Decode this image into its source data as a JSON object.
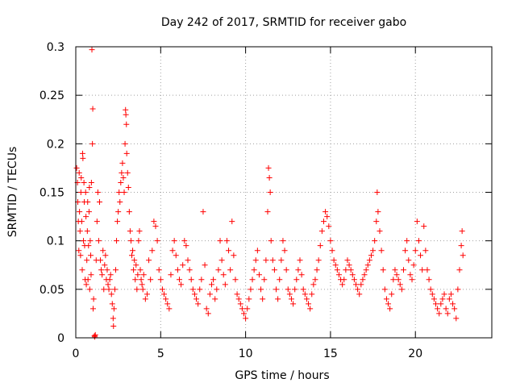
{
  "chart_data": {
    "type": "scatter",
    "title": "Day 242 of 2017, SRMTID for receiver gabo",
    "xlabel": "GPS time / hours",
    "ylabel": "SRMTID / TECUs",
    "xlim": [
      0,
      24.5
    ],
    "ylim": [
      0,
      0.3
    ],
    "xticks": [
      0,
      5,
      10,
      15,
      20
    ],
    "xtick_labels": [
      "0",
      "5",
      "10",
      "15",
      "20"
    ],
    "yticks": [
      0,
      0.05,
      0.1,
      0.15,
      0.2,
      0.25,
      0.3
    ],
    "ytick_labels": [
      "0",
      "0.05",
      "0.1",
      "0.15",
      "0.2",
      "0.25",
      "0.3"
    ],
    "grid": true,
    "marker": "+",
    "color": "#ff0000",
    "series": [
      {
        "name": "SRMTID",
        "points": [
          [
            0.05,
            0.175
          ],
          [
            0.1,
            0.16
          ],
          [
            0.12,
            0.14
          ],
          [
            0.15,
            0.12
          ],
          [
            0.18,
            0.09
          ],
          [
            0.2,
            0.17
          ],
          [
            0.22,
            0.13
          ],
          [
            0.25,
            0.11
          ],
          [
            0.28,
            0.085
          ],
          [
            0.3,
            0.15
          ],
          [
            0.32,
            0.165
          ],
          [
            0.35,
            0.12
          ],
          [
            0.38,
            0.07
          ],
          [
            0.4,
            0.19
          ],
          [
            0.42,
            0.185
          ],
          [
            0.45,
            0.1
          ],
          [
            0.48,
            0.16
          ],
          [
            0.5,
            0.14
          ],
          [
            0.52,
            0.095
          ],
          [
            0.55,
            0.06
          ],
          [
            0.58,
            0.15
          ],
          [
            0.6,
            0.125
          ],
          [
            0.62,
            0.055
          ],
          [
            0.65,
            0.08
          ],
          [
            0.68,
            0.11
          ],
          [
            0.7,
            0.14
          ],
          [
            0.72,
            0.06
          ],
          [
            0.75,
            0.095
          ],
          [
            0.78,
            0.13
          ],
          [
            0.8,
            0.155
          ],
          [
            0.82,
            0.05
          ],
          [
            0.85,
            0.1
          ],
          [
            0.88,
            0.085
          ],
          [
            0.9,
            0.065
          ],
          [
            0.92,
            0.16
          ],
          [
            0.95,
            0.297
          ],
          [
            0.98,
            0.2
          ],
          [
            1.0,
            0.236
          ],
          [
            1.02,
            0.03
          ],
          [
            1.05,
            0.04
          ],
          [
            1.1,
            0.002
          ],
          [
            1.12,
            0.001
          ],
          [
            1.15,
            0.003
          ],
          [
            1.2,
            0.08
          ],
          [
            1.25,
            0.12
          ],
          [
            1.3,
            0.15
          ],
          [
            1.35,
            0.1
          ],
          [
            1.4,
            0.14
          ],
          [
            1.45,
            0.08
          ],
          [
            1.5,
            0.07
          ],
          [
            1.55,
            0.065
          ],
          [
            1.6,
            0.09
          ],
          [
            1.65,
            0.05
          ],
          [
            1.7,
            0.075
          ],
          [
            1.75,
            0.085
          ],
          [
            1.8,
            0.06
          ],
          [
            1.85,
            0.07
          ],
          [
            1.9,
            0.055
          ],
          [
            1.95,
            0.05
          ],
          [
            2.0,
            0.06
          ],
          [
            2.05,
            0.065
          ],
          [
            2.1,
            0.045
          ],
          [
            2.15,
            0.035
          ],
          [
            2.2,
            0.02
          ],
          [
            2.22,
            0.012
          ],
          [
            2.25,
            0.03
          ],
          [
            2.3,
            0.05
          ],
          [
            2.35,
            0.07
          ],
          [
            2.4,
            0.1
          ],
          [
            2.45,
            0.12
          ],
          [
            2.5,
            0.13
          ],
          [
            2.55,
            0.15
          ],
          [
            2.6,
            0.14
          ],
          [
            2.65,
            0.16
          ],
          [
            2.7,
            0.17
          ],
          [
            2.75,
            0.18
          ],
          [
            2.8,
            0.165
          ],
          [
            2.85,
            0.15
          ],
          [
            2.9,
            0.2
          ],
          [
            2.93,
            0.235
          ],
          [
            2.95,
            0.23
          ],
          [
            2.98,
            0.22
          ],
          [
            3.0,
            0.19
          ],
          [
            3.05,
            0.17
          ],
          [
            3.1,
            0.155
          ],
          [
            3.15,
            0.13
          ],
          [
            3.2,
            0.11
          ],
          [
            3.25,
            0.1
          ],
          [
            3.3,
            0.085
          ],
          [
            3.35,
            0.09
          ],
          [
            3.4,
            0.07
          ],
          [
            3.45,
            0.08
          ],
          [
            3.5,
            0.06
          ],
          [
            3.55,
            0.075
          ],
          [
            3.6,
            0.05
          ],
          [
            3.65,
            0.065
          ],
          [
            3.7,
            0.1
          ],
          [
            3.75,
            0.11
          ],
          [
            3.8,
            0.07
          ],
          [
            3.85,
            0.06
          ],
          [
            3.9,
            0.055
          ],
          [
            3.95,
            0.05
          ],
          [
            4.0,
            0.065
          ],
          [
            4.1,
            0.04
          ],
          [
            4.2,
            0.045
          ],
          [
            4.3,
            0.08
          ],
          [
            4.4,
            0.06
          ],
          [
            4.5,
            0.09
          ],
          [
            4.6,
            0.12
          ],
          [
            4.7,
            0.115
          ],
          [
            4.8,
            0.1
          ],
          [
            4.9,
            0.07
          ],
          [
            5.0,
            0.06
          ],
          [
            5.1,
            0.05
          ],
          [
            5.2,
            0.045
          ],
          [
            5.3,
            0.04
          ],
          [
            5.4,
            0.035
          ],
          [
            5.5,
            0.03
          ],
          [
            5.6,
            0.065
          ],
          [
            5.7,
            0.09
          ],
          [
            5.8,
            0.1
          ],
          [
            5.9,
            0.085
          ],
          [
            6.0,
            0.07
          ],
          [
            6.1,
            0.06
          ],
          [
            6.2,
            0.055
          ],
          [
            6.3,
            0.075
          ],
          [
            6.4,
            0.1
          ],
          [
            6.5,
            0.095
          ],
          [
            6.6,
            0.08
          ],
          [
            6.7,
            0.07
          ],
          [
            6.8,
            0.06
          ],
          [
            6.9,
            0.05
          ],
          [
            7.0,
            0.045
          ],
          [
            7.1,
            0.04
          ],
          [
            7.2,
            0.035
          ],
          [
            7.3,
            0.05
          ],
          [
            7.4,
            0.06
          ],
          [
            7.5,
            0.13
          ],
          [
            7.6,
            0.075
          ],
          [
            7.7,
            0.03
          ],
          [
            7.8,
            0.025
          ],
          [
            7.9,
            0.045
          ],
          [
            8.0,
            0.055
          ],
          [
            8.1,
            0.06
          ],
          [
            8.2,
            0.04
          ],
          [
            8.3,
            0.05
          ],
          [
            8.4,
            0.07
          ],
          [
            8.5,
            0.1
          ],
          [
            8.6,
            0.08
          ],
          [
            8.7,
            0.065
          ],
          [
            8.8,
            0.055
          ],
          [
            8.9,
            0.1
          ],
          [
            9.0,
            0.09
          ],
          [
            9.1,
            0.07
          ],
          [
            9.2,
            0.12
          ],
          [
            9.3,
            0.085
          ],
          [
            9.4,
            0.06
          ],
          [
            9.5,
            0.045
          ],
          [
            9.6,
            0.04
          ],
          [
            9.7,
            0.035
          ],
          [
            9.8,
            0.03
          ],
          [
            9.9,
            0.025
          ],
          [
            10.0,
            0.02
          ],
          [
            10.1,
            0.03
          ],
          [
            10.2,
            0.04
          ],
          [
            10.3,
            0.05
          ],
          [
            10.4,
            0.06
          ],
          [
            10.5,
            0.07
          ],
          [
            10.6,
            0.08
          ],
          [
            10.7,
            0.09
          ],
          [
            10.8,
            0.065
          ],
          [
            10.9,
            0.05
          ],
          [
            11.0,
            0.04
          ],
          [
            11.1,
            0.06
          ],
          [
            11.2,
            0.08
          ],
          [
            11.3,
            0.13
          ],
          [
            11.35,
            0.175
          ],
          [
            11.4,
            0.165
          ],
          [
            11.45,
            0.15
          ],
          [
            11.5,
            0.1
          ],
          [
            11.6,
            0.08
          ],
          [
            11.7,
            0.07
          ],
          [
            11.8,
            0.05
          ],
          [
            11.9,
            0.04
          ],
          [
            12.0,
            0.06
          ],
          [
            12.1,
            0.08
          ],
          [
            12.2,
            0.1
          ],
          [
            12.3,
            0.09
          ],
          [
            12.4,
            0.07
          ],
          [
            12.5,
            0.05
          ],
          [
            12.6,
            0.045
          ],
          [
            12.7,
            0.04
          ],
          [
            12.8,
            0.035
          ],
          [
            12.9,
            0.05
          ],
          [
            13.0,
            0.06
          ],
          [
            13.1,
            0.07
          ],
          [
            13.2,
            0.08
          ],
          [
            13.3,
            0.065
          ],
          [
            13.4,
            0.05
          ],
          [
            13.5,
            0.045
          ],
          [
            13.6,
            0.04
          ],
          [
            13.7,
            0.035
          ],
          [
            13.8,
            0.03
          ],
          [
            13.9,
            0.045
          ],
          [
            14.0,
            0.055
          ],
          [
            14.1,
            0.06
          ],
          [
            14.2,
            0.07
          ],
          [
            14.3,
            0.08
          ],
          [
            14.4,
            0.095
          ],
          [
            14.5,
            0.11
          ],
          [
            14.6,
            0.12
          ],
          [
            14.7,
            0.13
          ],
          [
            14.8,
            0.125
          ],
          [
            14.9,
            0.115
          ],
          [
            15.0,
            0.1
          ],
          [
            15.1,
            0.09
          ],
          [
            15.2,
            0.08
          ],
          [
            15.3,
            0.075
          ],
          [
            15.4,
            0.07
          ],
          [
            15.5,
            0.065
          ],
          [
            15.6,
            0.06
          ],
          [
            15.7,
            0.055
          ],
          [
            15.8,
            0.06
          ],
          [
            15.9,
            0.07
          ],
          [
            16.0,
            0.08
          ],
          [
            16.1,
            0.075
          ],
          [
            16.2,
            0.07
          ],
          [
            16.3,
            0.065
          ],
          [
            16.4,
            0.06
          ],
          [
            16.5,
            0.055
          ],
          [
            16.6,
            0.05
          ],
          [
            16.7,
            0.045
          ],
          [
            16.8,
            0.055
          ],
          [
            16.9,
            0.06
          ],
          [
            17.0,
            0.065
          ],
          [
            17.1,
            0.07
          ],
          [
            17.2,
            0.075
          ],
          [
            17.3,
            0.08
          ],
          [
            17.4,
            0.085
          ],
          [
            17.5,
            0.09
          ],
          [
            17.6,
            0.1
          ],
          [
            17.7,
            0.12
          ],
          [
            17.75,
            0.15
          ],
          [
            17.8,
            0.13
          ],
          [
            17.9,
            0.11
          ],
          [
            18.0,
            0.09
          ],
          [
            18.1,
            0.07
          ],
          [
            18.2,
            0.05
          ],
          [
            18.3,
            0.04
          ],
          [
            18.4,
            0.035
          ],
          [
            18.5,
            0.03
          ],
          [
            18.6,
            0.045
          ],
          [
            18.7,
            0.06
          ],
          [
            18.8,
            0.07
          ],
          [
            18.9,
            0.065
          ],
          [
            19.0,
            0.06
          ],
          [
            19.1,
            0.055
          ],
          [
            19.2,
            0.05
          ],
          [
            19.3,
            0.07
          ],
          [
            19.4,
            0.09
          ],
          [
            19.5,
            0.1
          ],
          [
            19.6,
            0.08
          ],
          [
            19.7,
            0.065
          ],
          [
            19.8,
            0.06
          ],
          [
            19.9,
            0.075
          ],
          [
            20.0,
            0.09
          ],
          [
            20.1,
            0.12
          ],
          [
            20.2,
            0.1
          ],
          [
            20.3,
            0.085
          ],
          [
            20.4,
            0.07
          ],
          [
            20.5,
            0.115
          ],
          [
            20.6,
            0.09
          ],
          [
            20.7,
            0.07
          ],
          [
            20.8,
            0.06
          ],
          [
            20.9,
            0.05
          ],
          [
            21.0,
            0.045
          ],
          [
            21.1,
            0.04
          ],
          [
            21.2,
            0.035
          ],
          [
            21.3,
            0.03
          ],
          [
            21.4,
            0.025
          ],
          [
            21.5,
            0.035
          ],
          [
            21.6,
            0.04
          ],
          [
            21.7,
            0.045
          ],
          [
            21.8,
            0.03
          ],
          [
            21.9,
            0.025
          ],
          [
            22.0,
            0.04
          ],
          [
            22.1,
            0.045
          ],
          [
            22.2,
            0.035
          ],
          [
            22.3,
            0.03
          ],
          [
            22.4,
            0.02
          ],
          [
            22.5,
            0.05
          ],
          [
            22.6,
            0.07
          ],
          [
            22.7,
            0.095
          ],
          [
            22.75,
            0.11
          ],
          [
            22.8,
            0.085
          ]
        ]
      }
    ]
  }
}
